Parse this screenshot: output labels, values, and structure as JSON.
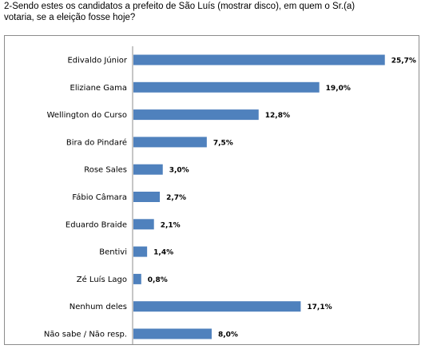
{
  "question": "2-Sendo estes os candidatos a prefeito de São Luís (mostrar disco), em quem o Sr.(a)\nvotaria, se a eleição fosse hoje?",
  "chart_data": {
    "type": "bar",
    "orientation": "horizontal",
    "categories": [
      "Edivaldo Júnior",
      "Eliziane Gama",
      "Wellington do Curso",
      "Bira do Pindaré",
      "Rose Sales",
      "Fábio Câmara",
      "Eduardo Braide",
      "Bentivi",
      "Zé Luís Lago",
      "Nenhum deles",
      "Não sabe / Não resp."
    ],
    "values": [
      25.7,
      19.0,
      12.8,
      7.5,
      3.0,
      2.7,
      2.1,
      1.4,
      0.8,
      17.1,
      8.0
    ],
    "value_labels": [
      "25,7%",
      "19,0%",
      "12,8%",
      "7,5%",
      "3,0%",
      "2,7%",
      "2,1%",
      "1,4%",
      "0,8%",
      "17,1%",
      "8,0%"
    ],
    "xlim": [
      0,
      27.6
    ],
    "grid": false,
    "bar_color": "#4f81bd"
  }
}
